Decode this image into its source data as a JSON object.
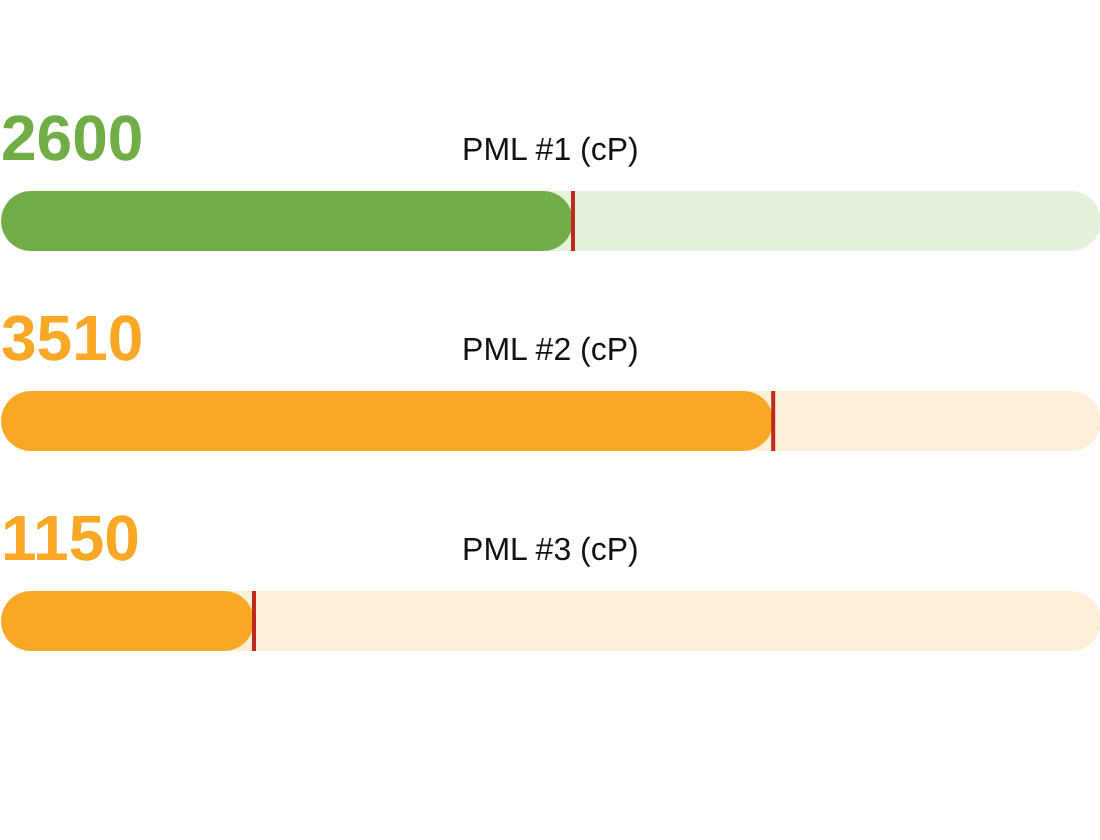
{
  "chart_data": {
    "type": "bar",
    "orientation": "horizontal",
    "categories": [
      "PML #1 (cP)",
      "PML #2 (cP)",
      "PML #3 (cP)"
    ],
    "values": [
      2600,
      3510,
      1150
    ],
    "colors": [
      "#70ad47",
      "#f9a825",
      "#f9a825"
    ],
    "data_labels": true,
    "xlim": [
      0,
      5000
    ]
  }
}
